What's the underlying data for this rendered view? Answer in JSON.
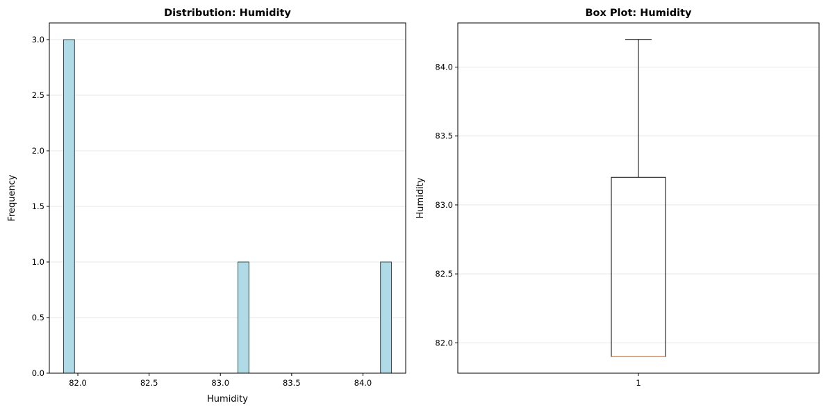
{
  "chart_data": [
    {
      "type": "bar",
      "subtype": "histogram",
      "title": "Distribution: Humidity",
      "xlabel": "Humidity",
      "ylabel": "Frequency",
      "xlim": [
        81.8,
        84.3
      ],
      "ylim": [
        0,
        3.15
      ],
      "xticks": [
        82.0,
        82.5,
        83.0,
        83.5,
        84.0
      ],
      "xtick_labels": [
        "82.0",
        "82.5",
        "83.0",
        "83.5",
        "84.0"
      ],
      "yticks": [
        0,
        0.5,
        1.0,
        1.5,
        2.0,
        2.5,
        3.0
      ],
      "ytick_labels": [
        "0.0",
        "0.5",
        "1.0",
        "1.5",
        "2.0",
        "2.5",
        "3.0"
      ],
      "grid": "y",
      "bar_color": "#add8e6",
      "edge_color": "#2f4f4f",
      "bins": [
        {
          "x0": 81.9,
          "x1": 81.977,
          "count": 3
        },
        {
          "x0": 83.123,
          "x1": 83.2,
          "count": 1
        },
        {
          "x0": 84.123,
          "x1": 84.2,
          "count": 1
        }
      ]
    },
    {
      "type": "box",
      "title": "Box Plot: Humidity",
      "xlabel": "",
      "ylabel": "Humidity",
      "categories": [
        "1"
      ],
      "ylim": [
        81.78,
        84.32
      ],
      "yticks": [
        82.0,
        82.5,
        83.0,
        83.5,
        84.0
      ],
      "ytick_labels": [
        "82.0",
        "82.5",
        "83.0",
        "83.5",
        "84.0"
      ],
      "grid": "y",
      "box": {
        "min": 81.9,
        "q1": 81.9,
        "median": 81.9,
        "q3": 83.2,
        "max": 84.2
      },
      "median_color": "#e08a4a"
    }
  ]
}
